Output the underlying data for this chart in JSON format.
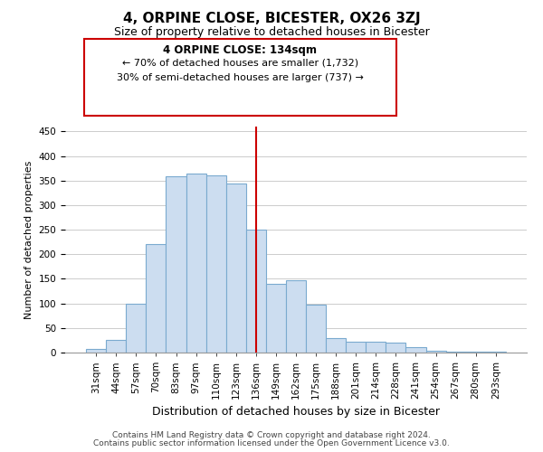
{
  "title": "4, ORPINE CLOSE, BICESTER, OX26 3ZJ",
  "subtitle": "Size of property relative to detached houses in Bicester",
  "xlabel": "Distribution of detached houses by size in Bicester",
  "ylabel": "Number of detached properties",
  "bar_labels": [
    "31sqm",
    "44sqm",
    "57sqm",
    "70sqm",
    "83sqm",
    "97sqm",
    "110sqm",
    "123sqm",
    "136sqm",
    "149sqm",
    "162sqm",
    "175sqm",
    "188sqm",
    "201sqm",
    "214sqm",
    "228sqm",
    "241sqm",
    "254sqm",
    "267sqm",
    "280sqm",
    "293sqm"
  ],
  "bar_values": [
    8,
    25,
    100,
    220,
    358,
    365,
    360,
    345,
    250,
    140,
    148,
    97,
    30,
    22,
    22,
    20,
    11,
    3,
    2,
    2,
    1
  ],
  "bar_color": "#ccddf0",
  "bar_edge_color": "#7aaacf",
  "vline_x": 8,
  "vline_color": "#cc0000",
  "ylim": [
    0,
    460
  ],
  "yticks": [
    0,
    50,
    100,
    150,
    200,
    250,
    300,
    350,
    400,
    450
  ],
  "annotation_title": "4 ORPINE CLOSE: 134sqm",
  "annotation_line1": "← 70% of detached houses are smaller (1,732)",
  "annotation_line2": "30% of semi-detached houses are larger (737) →",
  "annotation_box_color": "#ffffff",
  "annotation_box_edge": "#cc0000",
  "footnote1": "Contains HM Land Registry data © Crown copyright and database right 2024.",
  "footnote2": "Contains public sector information licensed under the Open Government Licence v3.0.",
  "bg_color": "#ffffff",
  "grid_color": "#cccccc",
  "title_fontsize": 11,
  "subtitle_fontsize": 9,
  "ylabel_fontsize": 8,
  "xlabel_fontsize": 9,
  "tick_fontsize": 7.5,
  "annotation_title_fontsize": 8.5,
  "annotation_text_fontsize": 8,
  "footnote_fontsize": 6.5
}
